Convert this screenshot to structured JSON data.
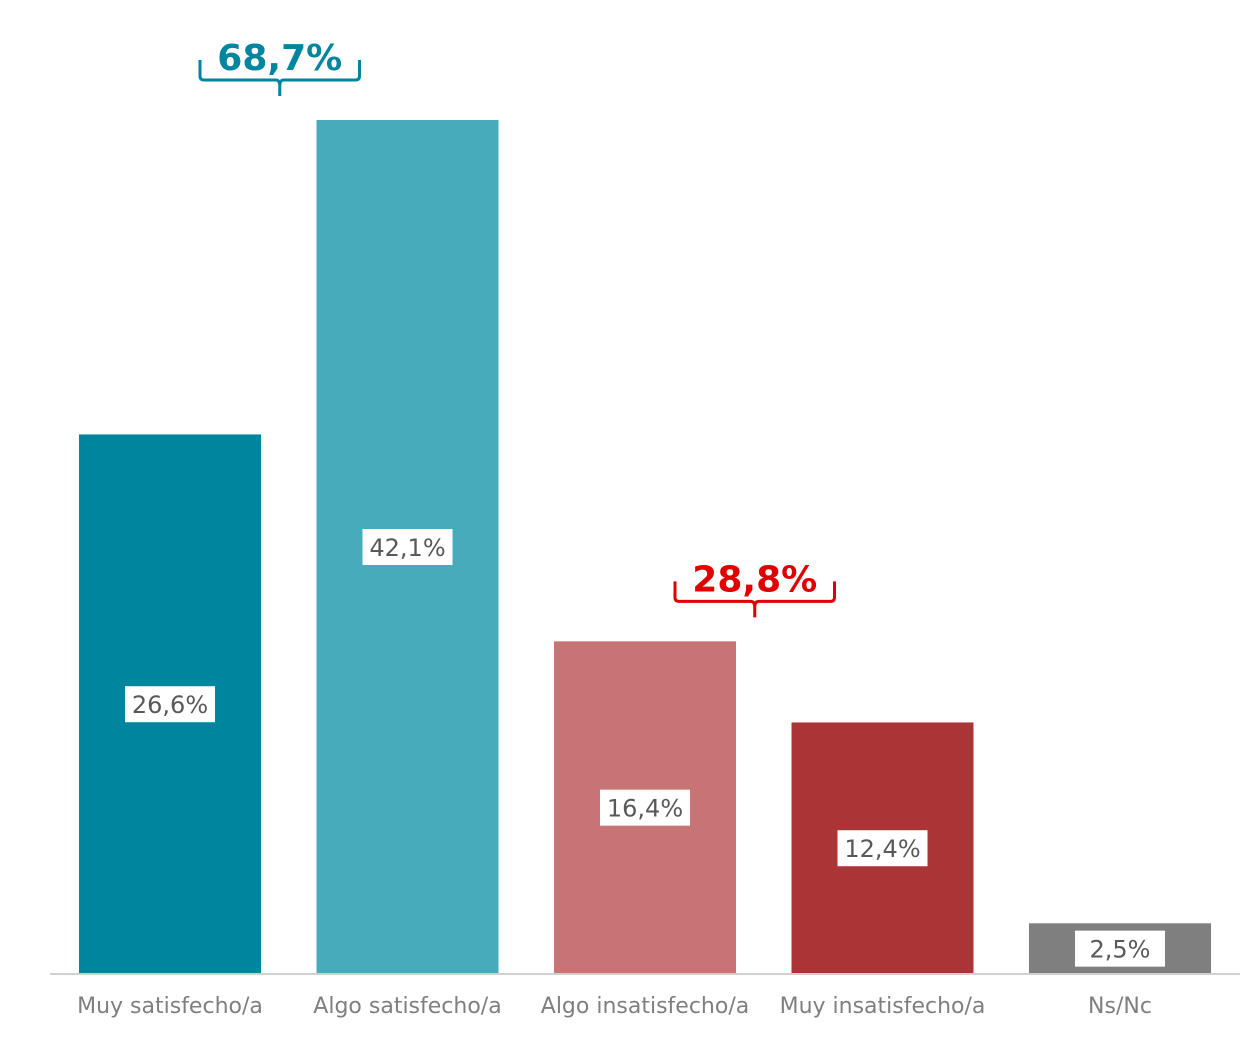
{
  "chart_data": {
    "type": "bar",
    "title": "",
    "xlabel": "",
    "ylabel": "",
    "ylim": [
      0,
      45
    ],
    "grid": false,
    "legend": "none",
    "categories": [
      "Muy satisfecho/a",
      "Algo satisfecho/a",
      "Algo insatisfecho/a",
      "Muy insatisfecho/a",
      "Ns/Nc"
    ],
    "values": [
      26.6,
      42.1,
      16.4,
      12.4,
      2.5
    ],
    "value_labels": [
      "26,6%",
      "42,1%",
      "16,4%",
      "12,4%",
      "2,5%"
    ],
    "colors": [
      "#00859e",
      "#48abbb",
      "#c87474",
      "#ab3436",
      "#7f7f7f"
    ],
    "annotations": [
      {
        "text": "68,7%",
        "spans": [
          "Muy satisfecho/a",
          "Algo satisfecho/a"
        ],
        "color": "#00859e"
      },
      {
        "text": "28,8%",
        "spans": [
          "Algo insatisfecho/a",
          "Muy insatisfecho/a"
        ],
        "color": "#e00000"
      }
    ]
  }
}
